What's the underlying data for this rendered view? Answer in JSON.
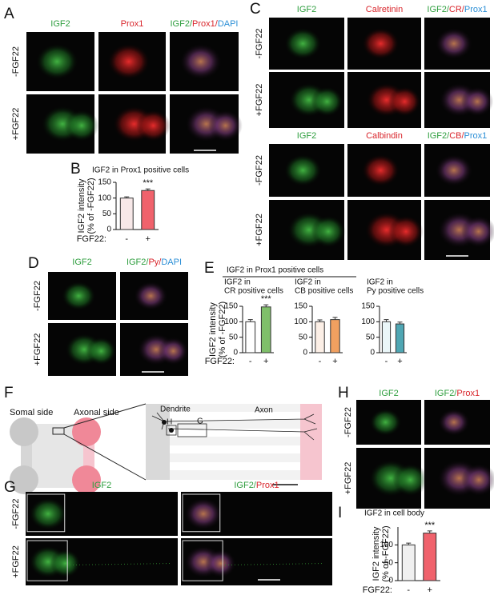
{
  "colors": [
    "#2e9e3e",
    "#d9262c",
    "#2b8fd6"
  ],
  "panels": [
    {
      "letter": "A",
      "columns": [
        [
          "IGF2"
        ],
        [
          "Prox1"
        ],
        [
          "IGF2/",
          "Prox1/",
          "DAPI"
        ]
      ],
      "rows": [
        "-FGF22",
        "+FGF22"
      ]
    },
    {
      "letter": "C",
      "columns": [
        [
          "IGF2"
        ],
        [
          "Calretinin"
        ],
        [
          "IGF2/",
          "CR/",
          "Prox1"
        ]
      ],
      "rows": [
        "-FGF22",
        "+FGF22"
      ]
    },
    {
      "columns": [
        [
          "IGF2"
        ],
        [
          "Calbindin"
        ],
        [
          "IGF2/",
          "CB/",
          "Prox1"
        ]
      ],
      "rows": [
        "-FGF22",
        "+FGF22"
      ]
    },
    {
      "letter": "D",
      "columns": [
        [
          "IGF2"
        ],
        [
          "IGF2/",
          "Py/",
          "DAPI"
        ]
      ],
      "rows": [
        "-FGF22",
        "+FGF22"
      ]
    },
    {
      "letter": "G",
      "columns": [
        [
          "IGF2"
        ],
        [
          "IGF2/",
          "Prox1"
        ]
      ],
      "rows": [
        "-FGF22",
        "+FGF22"
      ]
    },
    {
      "letter": "H",
      "columns": [
        [
          "IGF2"
        ],
        [
          "IGF2/",
          "Prox1"
        ]
      ],
      "rows": [
        "-FGF22",
        "+FGF22"
      ]
    }
  ],
  "diagram": {
    "letter": "F",
    "somal": "Somal side",
    "axonal": "Axonal side",
    "dendrite": "Dendrite",
    "axon": "Axon",
    "box_h": "H",
    "box_g": "G"
  },
  "chart_groups": [
    {
      "letter": "B",
      "type": "bar",
      "title": "IGF2 in Prox1 positive cells",
      "ylabel": [
        "IGF2 intensity",
        "(% of -FGF22)"
      ],
      "category_label": "FGF22:",
      "ylim": [
        0,
        150
      ],
      "yticks": [
        0,
        50,
        100,
        150
      ],
      "charts": [
        {
          "categories": [
            "-",
            "+"
          ],
          "values": [
            100,
            124
          ],
          "errors": [
            4,
            5
          ],
          "colors": [
            "#f7e8e8",
            "#f0626c"
          ],
          "annotations": [
            null,
            "***"
          ]
        }
      ]
    },
    {
      "letter": "E",
      "type": "bar",
      "title": "IGF2 in Prox1 positive cells",
      "ylabel": [
        "IGF2 intensity",
        "(% of -FGF22)"
      ],
      "category_label": "FGF22:",
      "ylim": [
        0,
        150
      ],
      "yticks": [
        0,
        50,
        100,
        150
      ],
      "charts": [
        {
          "subtitle": [
            "IGF2 in",
            "CR positive cells"
          ],
          "categories": [
            "-",
            "+"
          ],
          "values": [
            100,
            148
          ],
          "errors": [
            7,
            7
          ],
          "colors": [
            "#ffffff",
            "#7fbf6a"
          ],
          "annotations": [
            null,
            "***"
          ]
        },
        {
          "subtitle": [
            "IGF2 in",
            "CB positive cells"
          ],
          "categories": [
            "-",
            "+"
          ],
          "values": [
            100,
            107
          ],
          "errors": [
            6,
            7
          ],
          "colors": [
            "#fcefe6",
            "#f0a060"
          ]
        },
        {
          "subtitle": [
            "IGF2 in",
            "Py positive cells"
          ],
          "categories": [
            "-",
            "+"
          ],
          "values": [
            100,
            93
          ],
          "errors": [
            7,
            6
          ],
          "colors": [
            "#eaf6f8",
            "#4fa6b3"
          ]
        }
      ]
    },
    {
      "letter": "I",
      "type": "bar",
      "title": "IGF2 in cell body",
      "ylabel": [
        "IGF2 intensity",
        "(% of -FGF22)"
      ],
      "category_label": "FGF22:",
      "ylim": [
        0,
        150
      ],
      "yticks": [
        0,
        50,
        100
      ],
      "charts": [
        {
          "categories": [
            "-",
            "+"
          ],
          "values": [
            100,
            133
          ],
          "errors": [
            5,
            6
          ],
          "colors": [
            "#f0f0f0",
            "#f0626c"
          ],
          "annotations": [
            null,
            "***"
          ]
        }
      ]
    }
  ]
}
